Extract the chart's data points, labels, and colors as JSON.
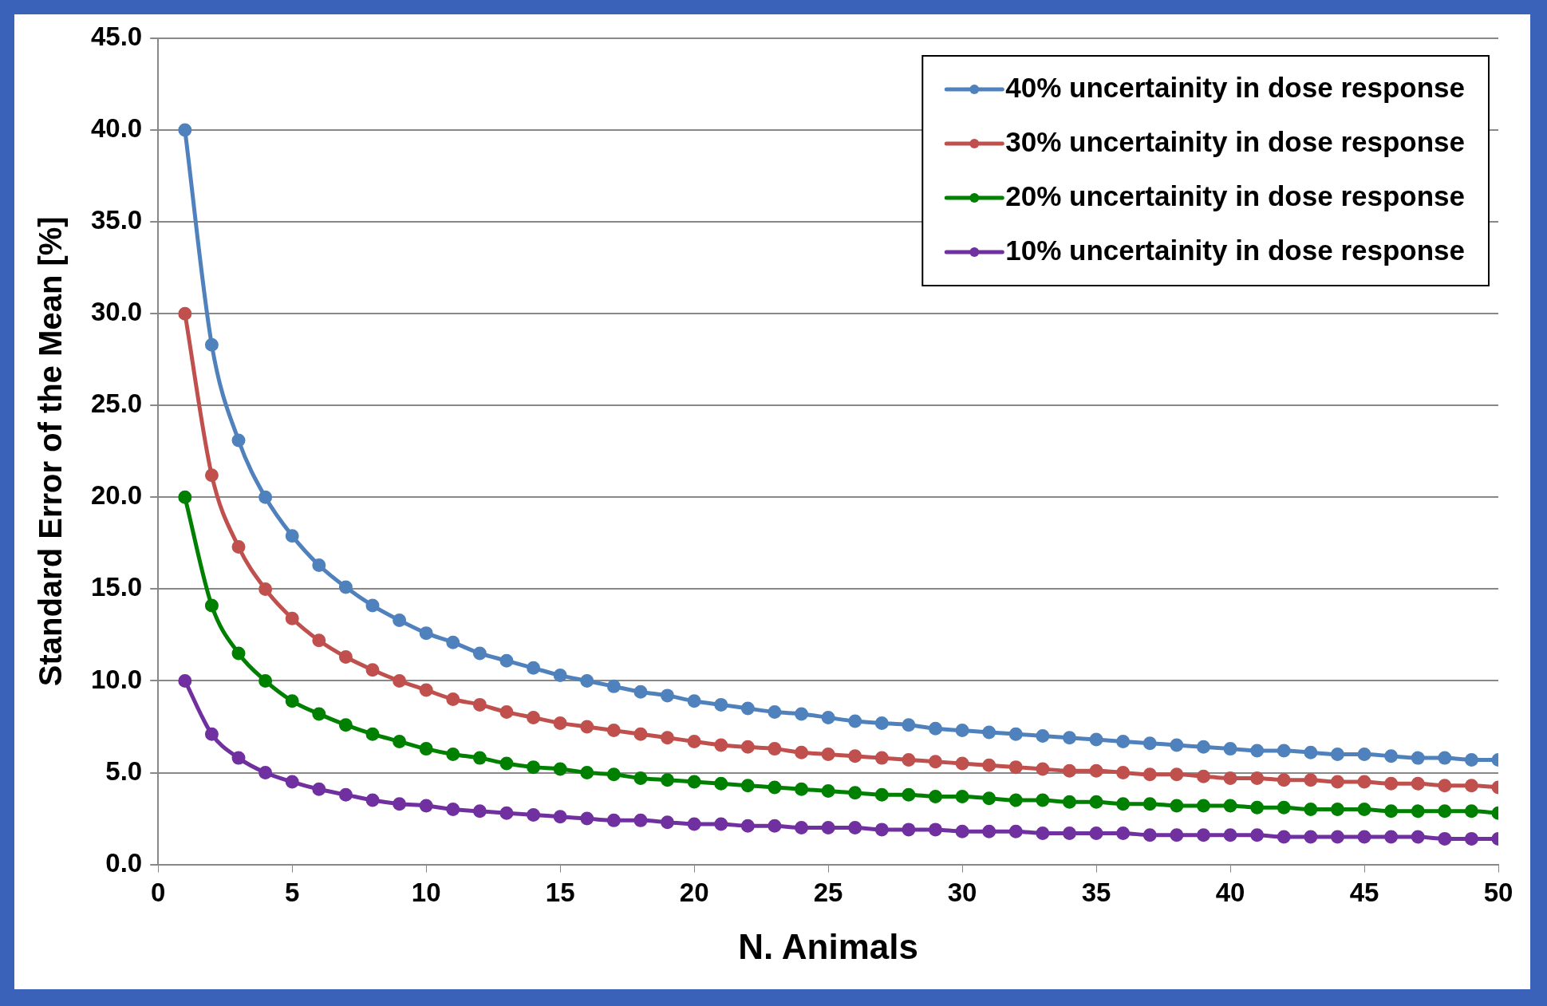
{
  "chart_data": {
    "type": "line",
    "xlabel": "N. Animals",
    "ylabel": "Standard Error of the Mean [%]",
    "x": [
      1,
      2,
      3,
      4,
      5,
      6,
      7,
      8,
      9,
      10,
      11,
      12,
      13,
      14,
      15,
      16,
      17,
      18,
      19,
      20,
      21,
      22,
      23,
      24,
      25,
      26,
      27,
      28,
      29,
      30,
      31,
      32,
      33,
      34,
      35,
      36,
      37,
      38,
      39,
      40,
      41,
      42,
      43,
      44,
      45,
      46,
      47,
      48,
      49,
      50
    ],
    "xlim": [
      0,
      50
    ],
    "xticks": [
      0,
      5,
      10,
      15,
      20,
      25,
      30,
      35,
      40,
      45,
      50
    ],
    "ylim": [
      0,
      45
    ],
    "yticks": [
      {
        "value": 0,
        "label": "0.0"
      },
      {
        "value": 5,
        "label": "5.0"
      },
      {
        "value": 10,
        "label": "10.0"
      },
      {
        "value": 15,
        "label": "15.0"
      },
      {
        "value": 20,
        "label": "20.0"
      },
      {
        "value": 25,
        "label": "25.0"
      },
      {
        "value": 30,
        "label": "30.0"
      },
      {
        "value": 35,
        "label": "35.0"
      },
      {
        "value": 40,
        "label": "40.0"
      },
      {
        "value": 45,
        "label": "45.0"
      }
    ],
    "grid": "y",
    "legend": "top right",
    "marker": "circle",
    "line_style": "solid",
    "series": [
      {
        "name": "40% uncertainity in dose response",
        "color": "#4f81bd",
        "values": [
          40.0,
          28.3,
          23.1,
          20.0,
          17.9,
          16.3,
          15.1,
          14.1,
          13.3,
          12.6,
          12.1,
          11.5,
          11.1,
          10.7,
          10.3,
          10.0,
          9.7,
          9.4,
          9.2,
          8.9,
          8.7,
          8.5,
          8.3,
          8.2,
          8.0,
          7.8,
          7.7,
          7.6,
          7.4,
          7.3,
          7.2,
          7.1,
          7.0,
          6.9,
          6.8,
          6.7,
          6.6,
          6.5,
          6.4,
          6.3,
          6.2,
          6.2,
          6.1,
          6.0,
          6.0,
          5.9,
          5.8,
          5.8,
          5.7,
          5.7
        ]
      },
      {
        "name": "30% uncertainity in dose response",
        "color": "#c0504d",
        "values": [
          30.0,
          21.2,
          17.3,
          15.0,
          13.4,
          12.2,
          11.3,
          10.6,
          10.0,
          9.5,
          9.0,
          8.7,
          8.3,
          8.0,
          7.7,
          7.5,
          7.3,
          7.1,
          6.9,
          6.7,
          6.5,
          6.4,
          6.3,
          6.1,
          6.0,
          5.9,
          5.8,
          5.7,
          5.6,
          5.5,
          5.4,
          5.3,
          5.2,
          5.1,
          5.1,
          5.0,
          4.9,
          4.9,
          4.8,
          4.7,
          4.7,
          4.6,
          4.6,
          4.5,
          4.5,
          4.4,
          4.4,
          4.3,
          4.3,
          4.2
        ]
      },
      {
        "name": "20% uncertainity in dose response",
        "color": "#008000",
        "values": [
          20.0,
          14.1,
          11.5,
          10.0,
          8.9,
          8.2,
          7.6,
          7.1,
          6.7,
          6.3,
          6.0,
          5.8,
          5.5,
          5.3,
          5.2,
          5.0,
          4.9,
          4.7,
          4.6,
          4.5,
          4.4,
          4.3,
          4.2,
          4.1,
          4.0,
          3.9,
          3.8,
          3.8,
          3.7,
          3.7,
          3.6,
          3.5,
          3.5,
          3.4,
          3.4,
          3.3,
          3.3,
          3.2,
          3.2,
          3.2,
          3.1,
          3.1,
          3.0,
          3.0,
          3.0,
          2.9,
          2.9,
          2.9,
          2.9,
          2.8
        ]
      },
      {
        "name": "10% uncertainity in dose response",
        "color": "#7030a0",
        "values": [
          10.0,
          7.1,
          5.8,
          5.0,
          4.5,
          4.1,
          3.8,
          3.5,
          3.3,
          3.2,
          3.0,
          2.9,
          2.8,
          2.7,
          2.6,
          2.5,
          2.4,
          2.4,
          2.3,
          2.2,
          2.2,
          2.1,
          2.1,
          2.0,
          2.0,
          2.0,
          1.9,
          1.9,
          1.9,
          1.8,
          1.8,
          1.8,
          1.7,
          1.7,
          1.7,
          1.7,
          1.6,
          1.6,
          1.6,
          1.6,
          1.6,
          1.5,
          1.5,
          1.5,
          1.5,
          1.5,
          1.5,
          1.4,
          1.4,
          1.4
        ]
      }
    ]
  }
}
